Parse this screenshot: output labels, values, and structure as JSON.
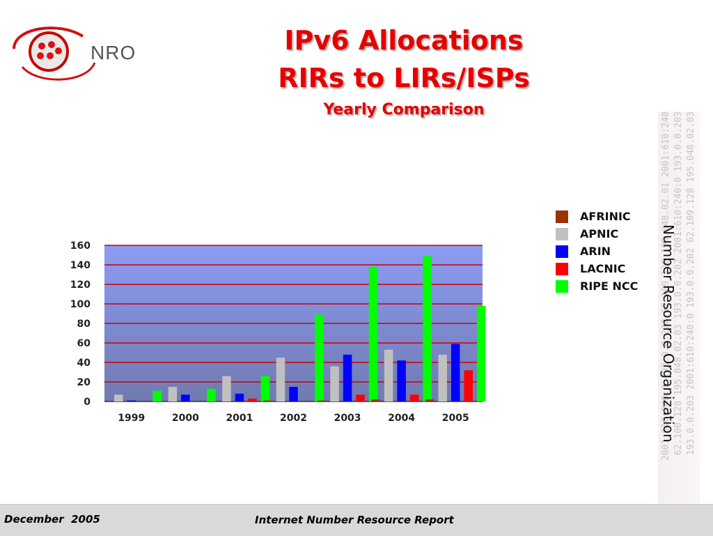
{
  "header": {
    "logo_text": "NRO",
    "title_line1": "IPv6 Allocations",
    "title_line2": "RIRs to LIRs/ISPs",
    "subtitle": "Yearly Comparison"
  },
  "side": {
    "caption": "Number Resource Organization",
    "ip_texts": [
      "2001:610:240:0  193.0.0.202  62.109.128  195.048.02.01  2001:610:240",
      "62.100.128  195.048.02.03  193.0.0.202  2001:610:240:0  193.0.0.203",
      "193.0.0.203  2001:610:240:0  193.0.0.202  62.109.128  195.048.02.03"
    ]
  },
  "footer": {
    "left": "December  2005",
    "center": "Internet Number Resource Report"
  },
  "chart_data": {
    "type": "bar",
    "categories": [
      "1999",
      "2000",
      "2001",
      "2002",
      "2003",
      "2004",
      "2005"
    ],
    "series": [
      {
        "name": "AFRINIC",
        "color": "#993300",
        "values": [
          0,
          0,
          0,
          1,
          1,
          2,
          2
        ]
      },
      {
        "name": "APNIC",
        "color": "#c0c0c0",
        "values": [
          7,
          15,
          26,
          45,
          36,
          53,
          48
        ]
      },
      {
        "name": "ARIN",
        "color": "#0000ff",
        "values": [
          1,
          7,
          8,
          15,
          48,
          42,
          59
        ]
      },
      {
        "name": "LACNIC",
        "color": "#ff0000",
        "values": [
          0,
          0,
          3,
          0,
          7,
          7,
          32
        ]
      },
      {
        "name": "RIPE NCC",
        "color": "#00ff00",
        "values": [
          11,
          13,
          26,
          89,
          138,
          149,
          98
        ]
      }
    ],
    "yticks": [
      0,
      20,
      40,
      60,
      80,
      100,
      120,
      140,
      160
    ],
    "ylim": [
      0,
      160
    ],
    "grid": true,
    "gridline_color": "#cc0000",
    "plot_background": [
      "#8c9cf4",
      "#707ab0"
    ],
    "legend_position": "right"
  }
}
